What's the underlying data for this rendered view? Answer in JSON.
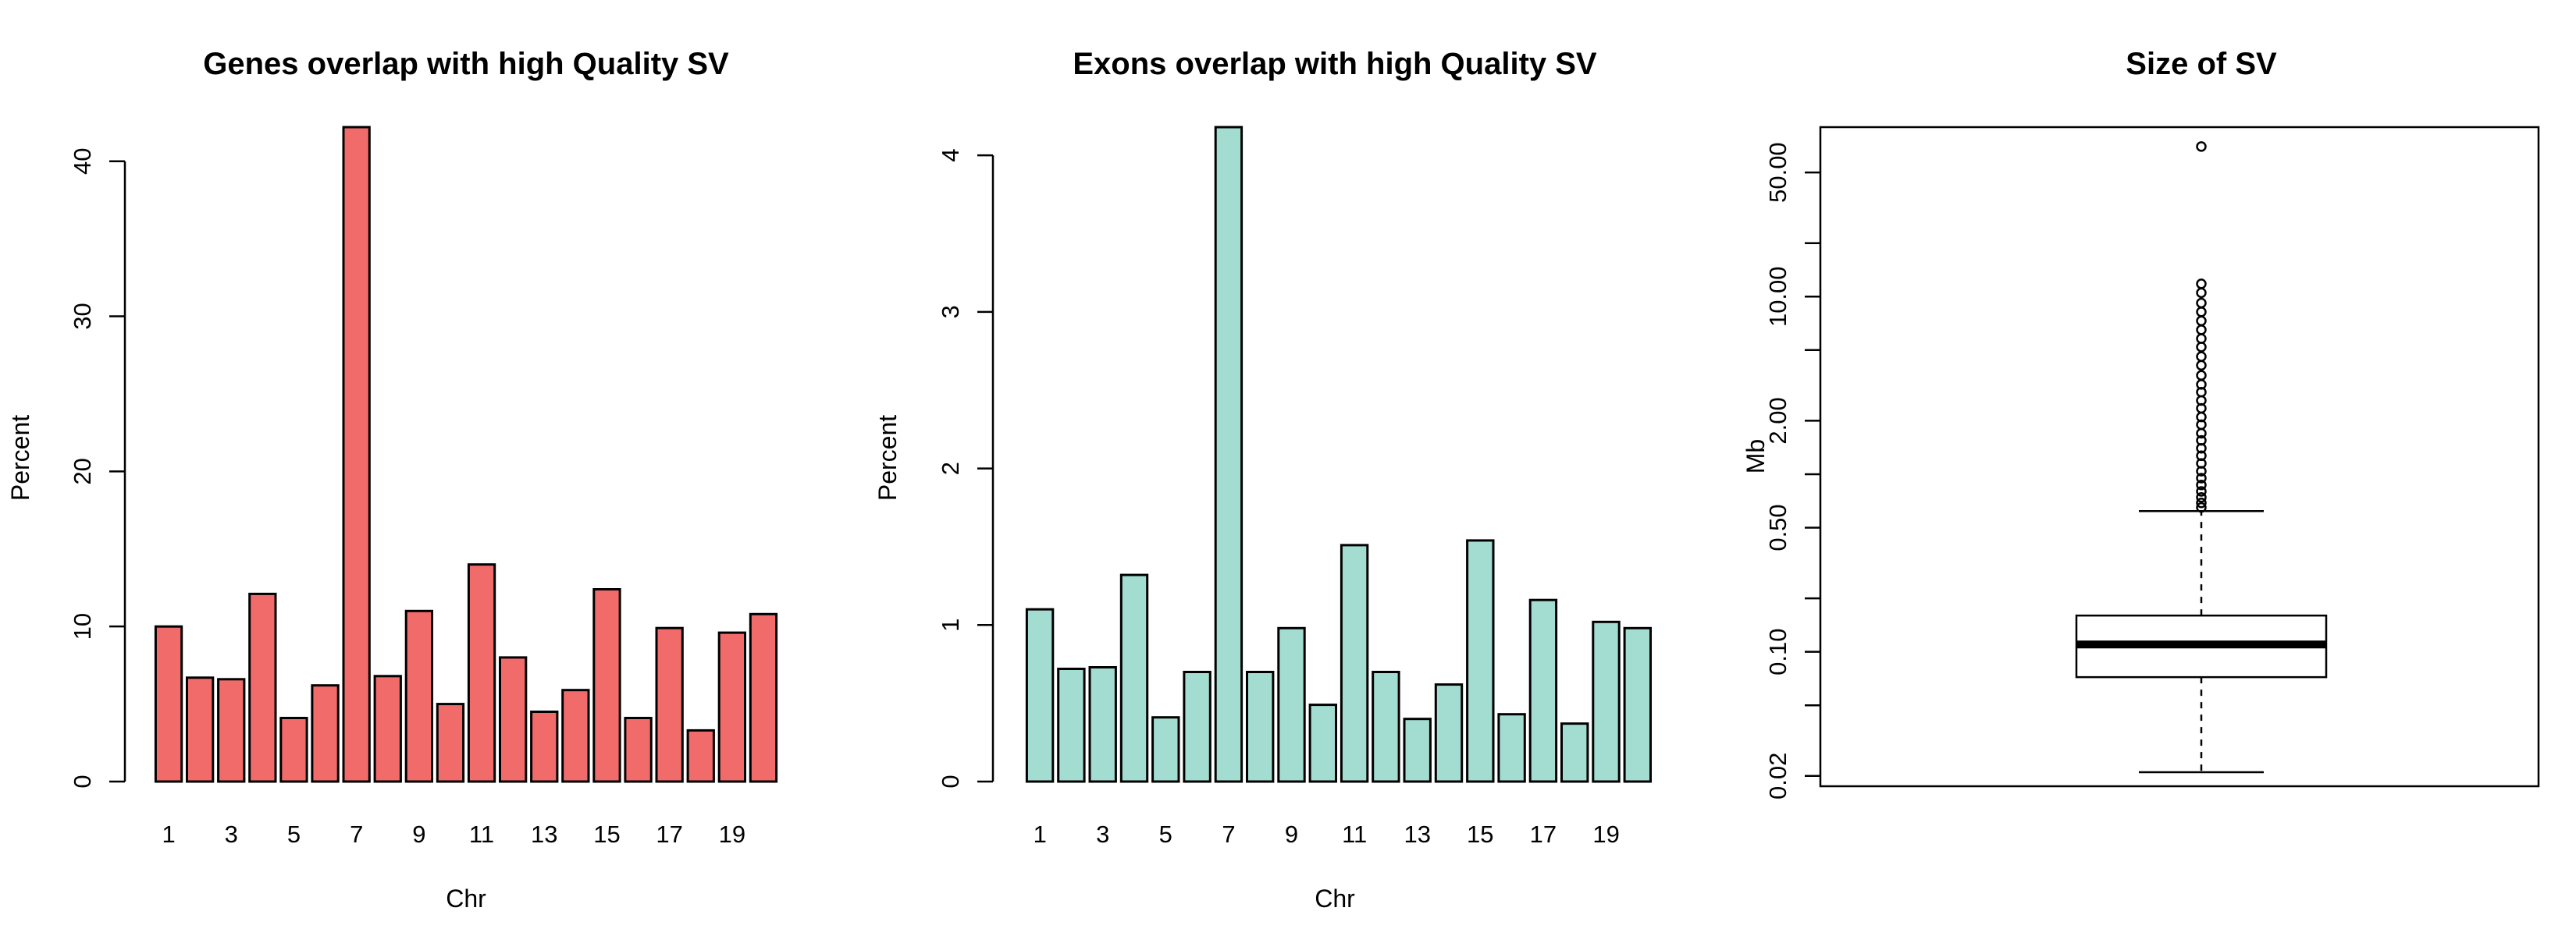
{
  "chart_data": [
    {
      "type": "bar",
      "title": "Genes overlap with high Quality SV",
      "xlabel": "Chr",
      "ylabel": "Percent",
      "categories": [
        "1",
        "2",
        "3",
        "4",
        "5",
        "6",
        "7",
        "8",
        "9",
        "10",
        "11",
        "12",
        "13",
        "14",
        "15",
        "16",
        "17",
        "18",
        "19",
        "20"
      ],
      "x_tick_labels": [
        "1",
        "3",
        "5",
        "7",
        "9",
        "11",
        "13",
        "15",
        "17",
        "19"
      ],
      "values": [
        10.0,
        6.7,
        6.6,
        12.1,
        4.1,
        6.2,
        42.2,
        6.8,
        11.0,
        5.0,
        14.0,
        8.0,
        4.5,
        5.9,
        12.4,
        4.1,
        9.9,
        3.3,
        9.6,
        10.8
      ],
      "ylim": [
        0,
        42.2
      ],
      "y_ticks": [
        0,
        10,
        20,
        30,
        40
      ],
      "bar_color": "#F26B6B",
      "grid": false
    },
    {
      "type": "bar",
      "title": "Exons overlap with high Quality SV",
      "xlabel": "Chr",
      "ylabel": "Percent",
      "categories": [
        "1",
        "2",
        "3",
        "4",
        "5",
        "6",
        "7",
        "8",
        "9",
        "10",
        "11",
        "12",
        "13",
        "14",
        "15",
        "16",
        "17",
        "18",
        "19",
        "20"
      ],
      "x_tick_labels": [
        "1",
        "3",
        "5",
        "7",
        "9",
        "11",
        "13",
        "15",
        "17",
        "19"
      ],
      "values": [
        1.1,
        0.72,
        0.73,
        1.32,
        0.41,
        0.7,
        4.18,
        0.7,
        0.98,
        0.49,
        1.51,
        0.7,
        0.4,
        0.62,
        1.54,
        0.43,
        1.16,
        0.37,
        1.02,
        0.98
      ],
      "ylim": [
        0,
        4.18
      ],
      "y_ticks": [
        0,
        1,
        2,
        3,
        4
      ],
      "bar_color": "#A3DDD1",
      "grid": false
    },
    {
      "type": "box",
      "title": "Size of SV",
      "ylabel": "Mb",
      "log_scale": true,
      "ylim": [
        0.0175,
        90
      ],
      "y_ticks": [
        0.02,
        0.05,
        0.1,
        0.2,
        0.5,
        1,
        2,
        5,
        10,
        20,
        50
      ],
      "y_tick_labels": [
        "0.02",
        "",
        "0.10",
        "",
        "0.50",
        "",
        "2.00",
        "",
        "10.00",
        "",
        "50.00"
      ],
      "box": {
        "whisker_low": 0.021,
        "q1": 0.072,
        "median": 0.11,
        "q3": 0.16,
        "whisker_high": 0.62
      },
      "outliers": [
        70,
        11.8,
        10.5,
        9.2,
        8.2,
        7.3,
        6.5,
        5.8,
        5.2,
        4.6,
        4.1,
        3.6,
        3.2,
        2.9,
        2.6,
        2.35,
        2.1,
        1.9,
        1.7,
        1.55,
        1.4,
        1.27,
        1.15,
        1.04,
        0.95,
        0.87,
        0.8,
        0.74,
        0.69,
        0.65
      ],
      "grid": false
    }
  ]
}
